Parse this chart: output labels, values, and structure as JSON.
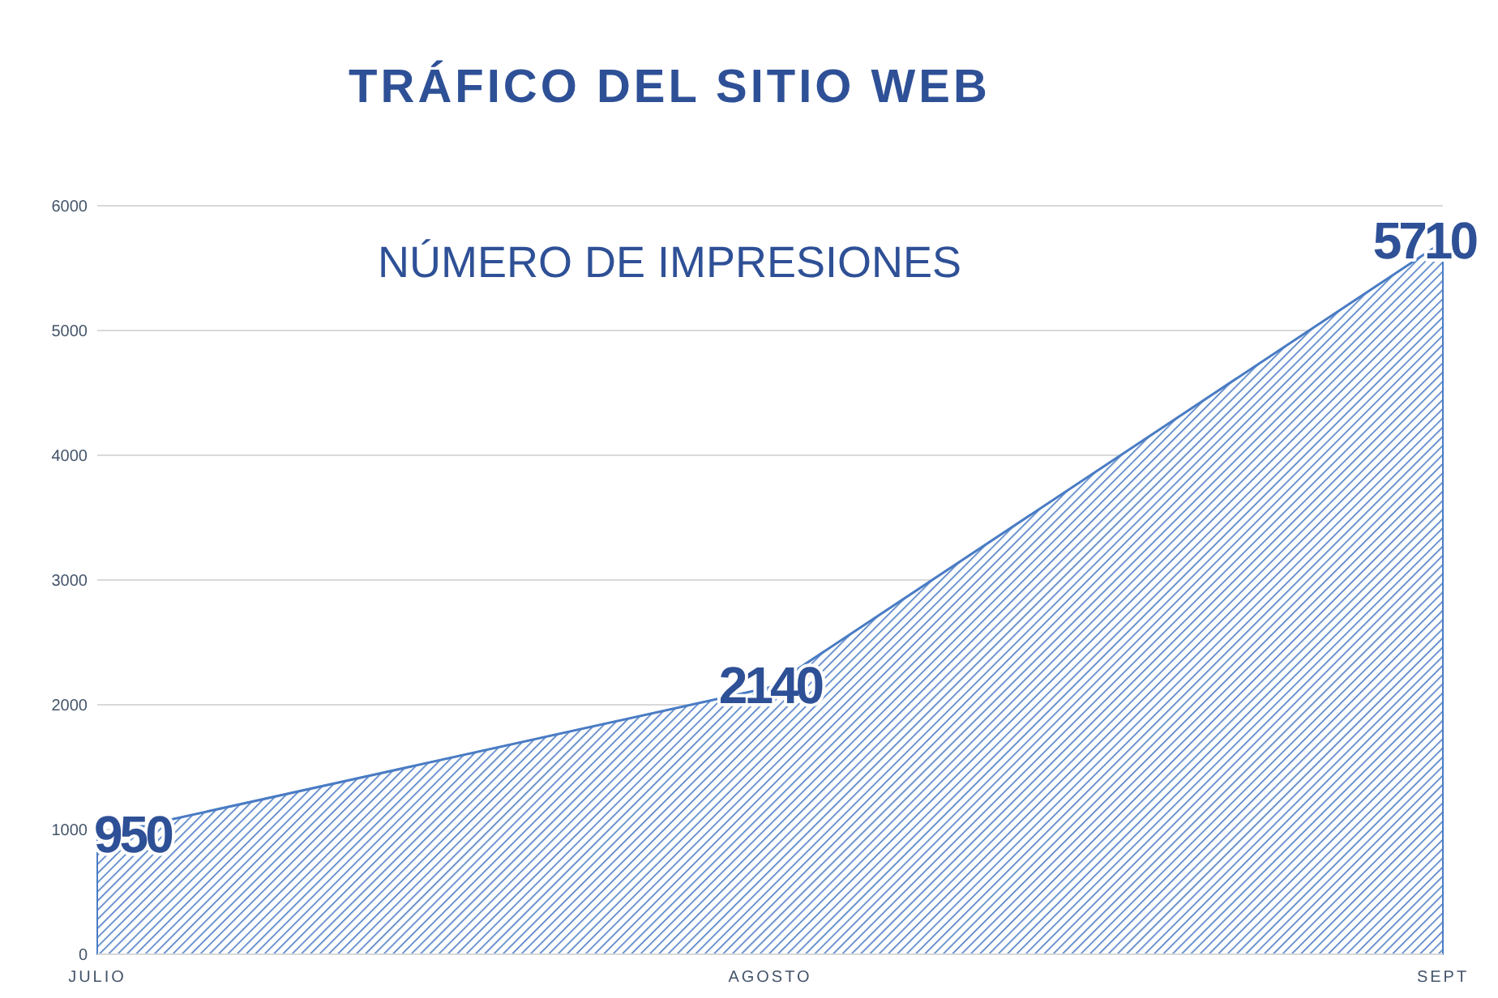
{
  "chart_data": {
    "type": "area",
    "title": "TRÁFICO DEL SITIO WEB",
    "subtitle": "NÚMERO DE IMPRESIONES",
    "categories": [
      "JULIO",
      "AGOSTO",
      "SEPT"
    ],
    "series": [
      {
        "color": "#4a7cc4",
        "values": [
          950,
          2140,
          5710
        ]
      }
    ],
    "ylim": [
      0,
      6000
    ],
    "yticks": [
      0,
      1000,
      2000,
      3000,
      4000,
      5000,
      6000
    ],
    "grid": "y",
    "data_labels": true
  }
}
